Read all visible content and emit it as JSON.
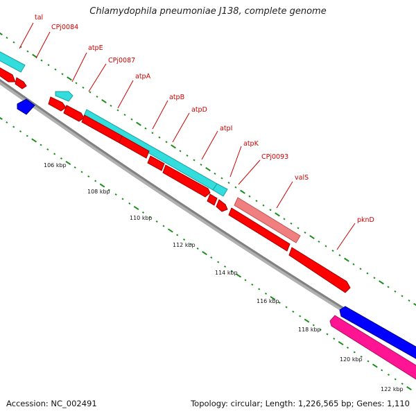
{
  "title": "Chlamydophila pneumoniae J138, complete genome",
  "footer": {
    "accession": "Accession: NC_002491",
    "summary": "Topology: circular; Length: 1,226,565 bp; Genes: 1,110"
  },
  "colors": {
    "background": "#ffffff",
    "backbone": "#808080",
    "tick": "#1a8c1a",
    "label_red": "#cc0000",
    "cyan": "#33dddd",
    "red": "#ff0000",
    "blue": "#0000ff",
    "salmon": "#f08080",
    "magenta": "#ff1493"
  },
  "genes": [
    {
      "name": "tal",
      "track": "cyan-top"
    },
    {
      "name": "CPj0084",
      "track": "cyan-top"
    },
    {
      "name": "atpE",
      "track": "cyan-top"
    },
    {
      "name": "CPj0087",
      "track": "red"
    },
    {
      "name": "atpA",
      "track": "cyan-top"
    },
    {
      "name": "atpB",
      "track": "red"
    },
    {
      "name": "atpD",
      "track": "red"
    },
    {
      "name": "atpI",
      "track": "red"
    },
    {
      "name": "atpK",
      "track": "cyan-top"
    },
    {
      "name": "CPj0093",
      "track": "red"
    },
    {
      "name": "valS",
      "track": "salmon"
    },
    {
      "name": "pknD",
      "track": "red"
    }
  ],
  "kbp_ticks": [
    "106 kbp",
    "108 kbp",
    "110 kbp",
    "112 kbp",
    "114 kbp",
    "116 kbp",
    "118 kbp",
    "120 kbp",
    "122 kbp"
  ]
}
